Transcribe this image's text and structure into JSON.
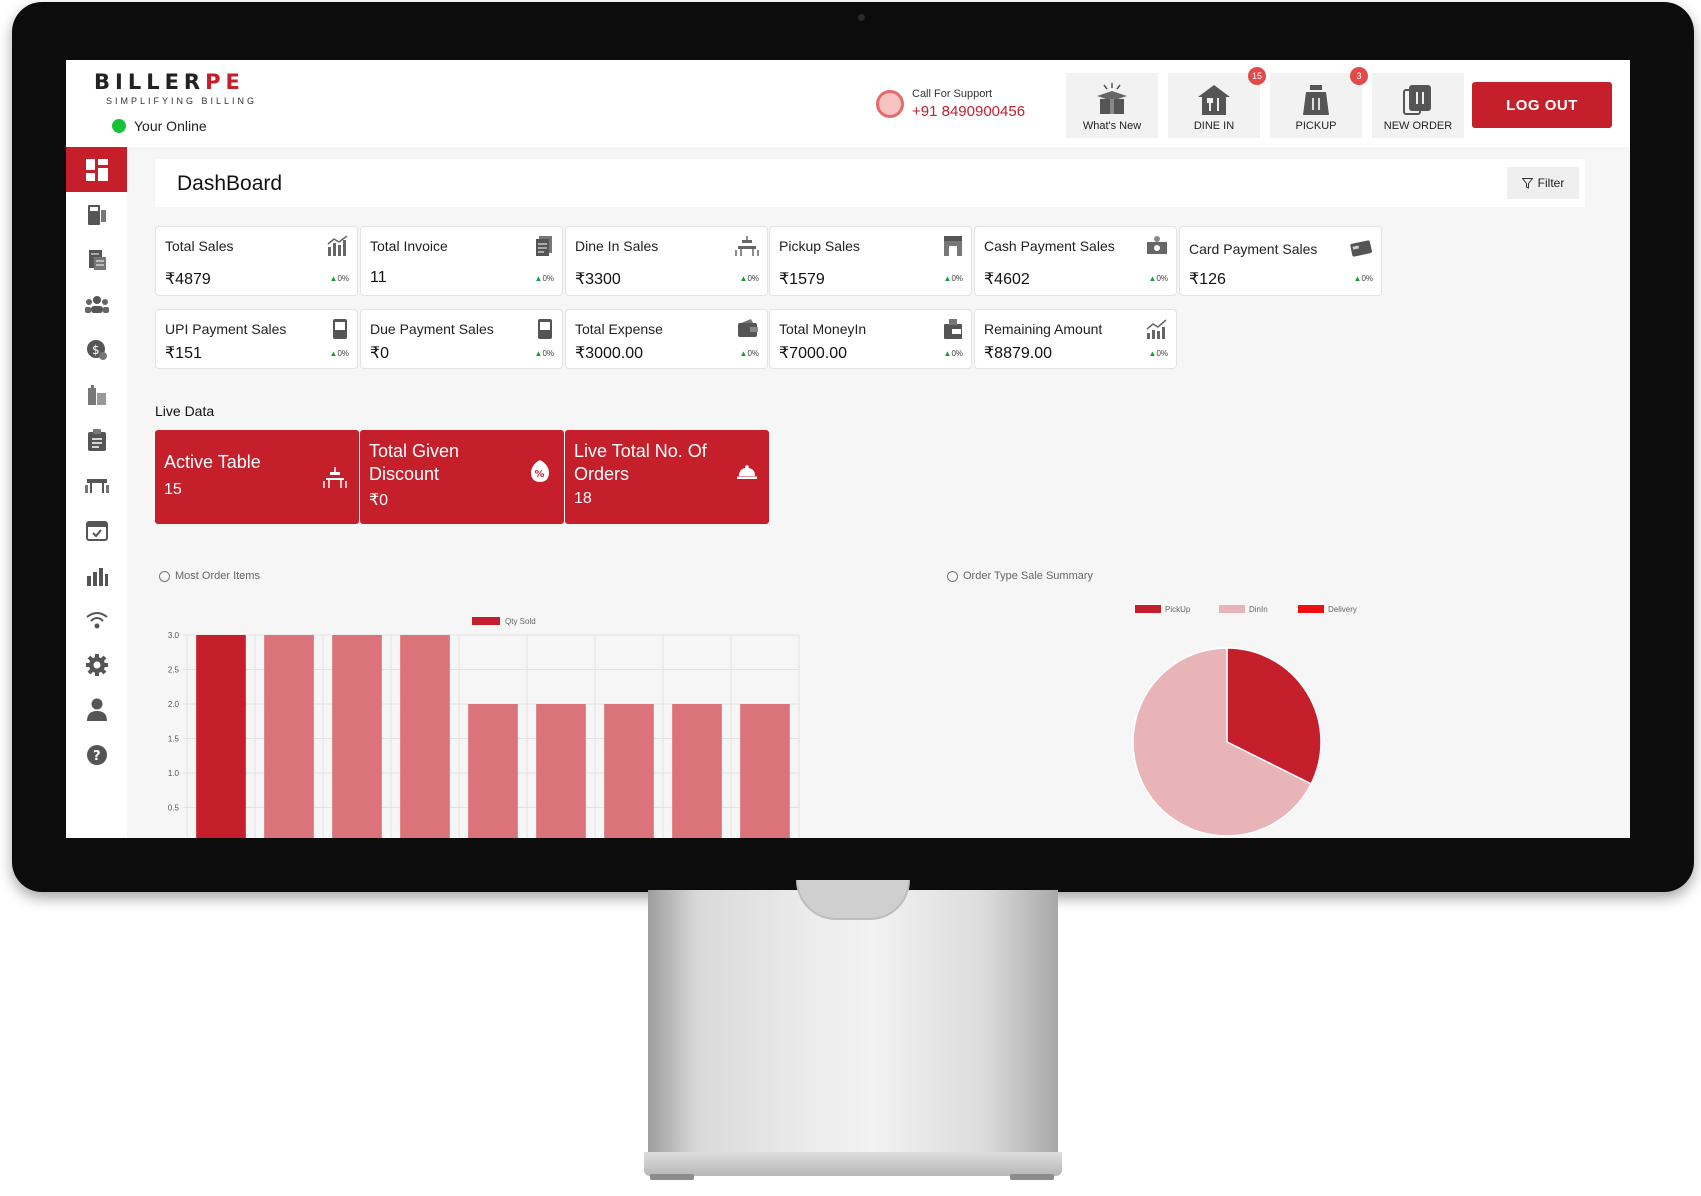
{
  "brand": {
    "logo_main": "BILLER",
    "logo_accent": "PE",
    "tagline": "SIMPLIFYING BILLING",
    "status": "Your Online"
  },
  "support": {
    "label": "Call For Support",
    "phone": "+91 8490900456"
  },
  "nav": {
    "whats_new": "What's New",
    "dine_in": "DINE IN",
    "dine_in_badge": "15",
    "pickup": "PICKUP",
    "pickup_badge": "3",
    "new_order": "NEW ORDER",
    "logout": "LOG OUT"
  },
  "sidebar": {
    "icons": [
      "dashboard-icon",
      "pos-icon",
      "invoice-icon",
      "customers-icon",
      "payments-icon",
      "inventory-icon",
      "clipboard-icon",
      "table-icon",
      "calendar-icon",
      "reports-icon",
      "wifi-icon",
      "settings-icon",
      "user-icon",
      "help-icon"
    ]
  },
  "dashboard": {
    "title": "DashBoard",
    "filter": "Filter",
    "cards": [
      {
        "label": "Total Sales",
        "value": "₹4879",
        "pct": "0%",
        "icon": "bar-chart-icon"
      },
      {
        "label": "Total Invoice",
        "value": "11",
        "pct": "0%",
        "icon": "invoice-icon"
      },
      {
        "label": "Dine In Sales",
        "value": "₹3300",
        "pct": "0%",
        "icon": "dining-table-icon"
      },
      {
        "label": "Pickup Sales",
        "value": "₹1579",
        "pct": "0%",
        "icon": "store-icon"
      },
      {
        "label": "Cash Payment Sales",
        "value": "₹4602",
        "pct": "0%",
        "icon": "cash-icon"
      },
      {
        "label": "Card Payment Sales",
        "value": "₹126",
        "pct": "0%",
        "icon": "card-icon"
      },
      {
        "label": "UPI Payment Sales",
        "value": "₹151",
        "pct": "0%",
        "icon": "mobile-pay-icon"
      },
      {
        "label": "Due Payment Sales",
        "value": "₹0",
        "pct": "0%",
        "icon": "mobile-due-icon"
      },
      {
        "label": "Total Expense",
        "value": "₹3000.00",
        "pct": "0%",
        "icon": "wallet-icon"
      },
      {
        "label": "Total MoneyIn",
        "value": "₹7000.00",
        "pct": "0%",
        "icon": "money-in-icon"
      },
      {
        "label": "Remaining Amount",
        "value": "₹8879.00",
        "pct": "0%",
        "icon": "trend-icon"
      }
    ],
    "live_title": "Live Data",
    "live_cards": [
      {
        "label_1": "Active Table",
        "label_2": "",
        "value": "15",
        "icon": "dining-table-icon"
      },
      {
        "label_1": "Total Given",
        "label_2": "Discount",
        "value": "₹0",
        "icon": "discount-tag-icon"
      },
      {
        "label_1": "Live Total No. Of",
        "label_2": "Orders",
        "value": "18",
        "icon": "cloche-icon"
      }
    ]
  },
  "colors": {
    "accent": "#c51f2b",
    "bar_light": "#db737a",
    "pie_light": "#e8b4b7",
    "delivery": "#f20f0f"
  },
  "chart_data": [
    {
      "type": "bar",
      "title": "Most Order Items",
      "categories": [
        "",
        "",
        "",
        "",
        "",
        "",
        "",
        "",
        ""
      ],
      "series": [
        {
          "name": "Qty Sold",
          "values": [
            3,
            3,
            3,
            3,
            2,
            2,
            2,
            2,
            2
          ]
        }
      ],
      "y_ticks": [
        "3.0",
        "2.5",
        "2.0",
        "1.5",
        "1.0",
        "0.5"
      ],
      "ylim": [
        0,
        3
      ],
      "grid": true,
      "legend": "top"
    },
    {
      "type": "pie",
      "title": "Order Type Sale Summary",
      "labels": [
        "PickUp",
        "DinIn",
        "Delivery"
      ],
      "values": [
        1579,
        3300,
        0
      ],
      "legend": "top"
    }
  ]
}
